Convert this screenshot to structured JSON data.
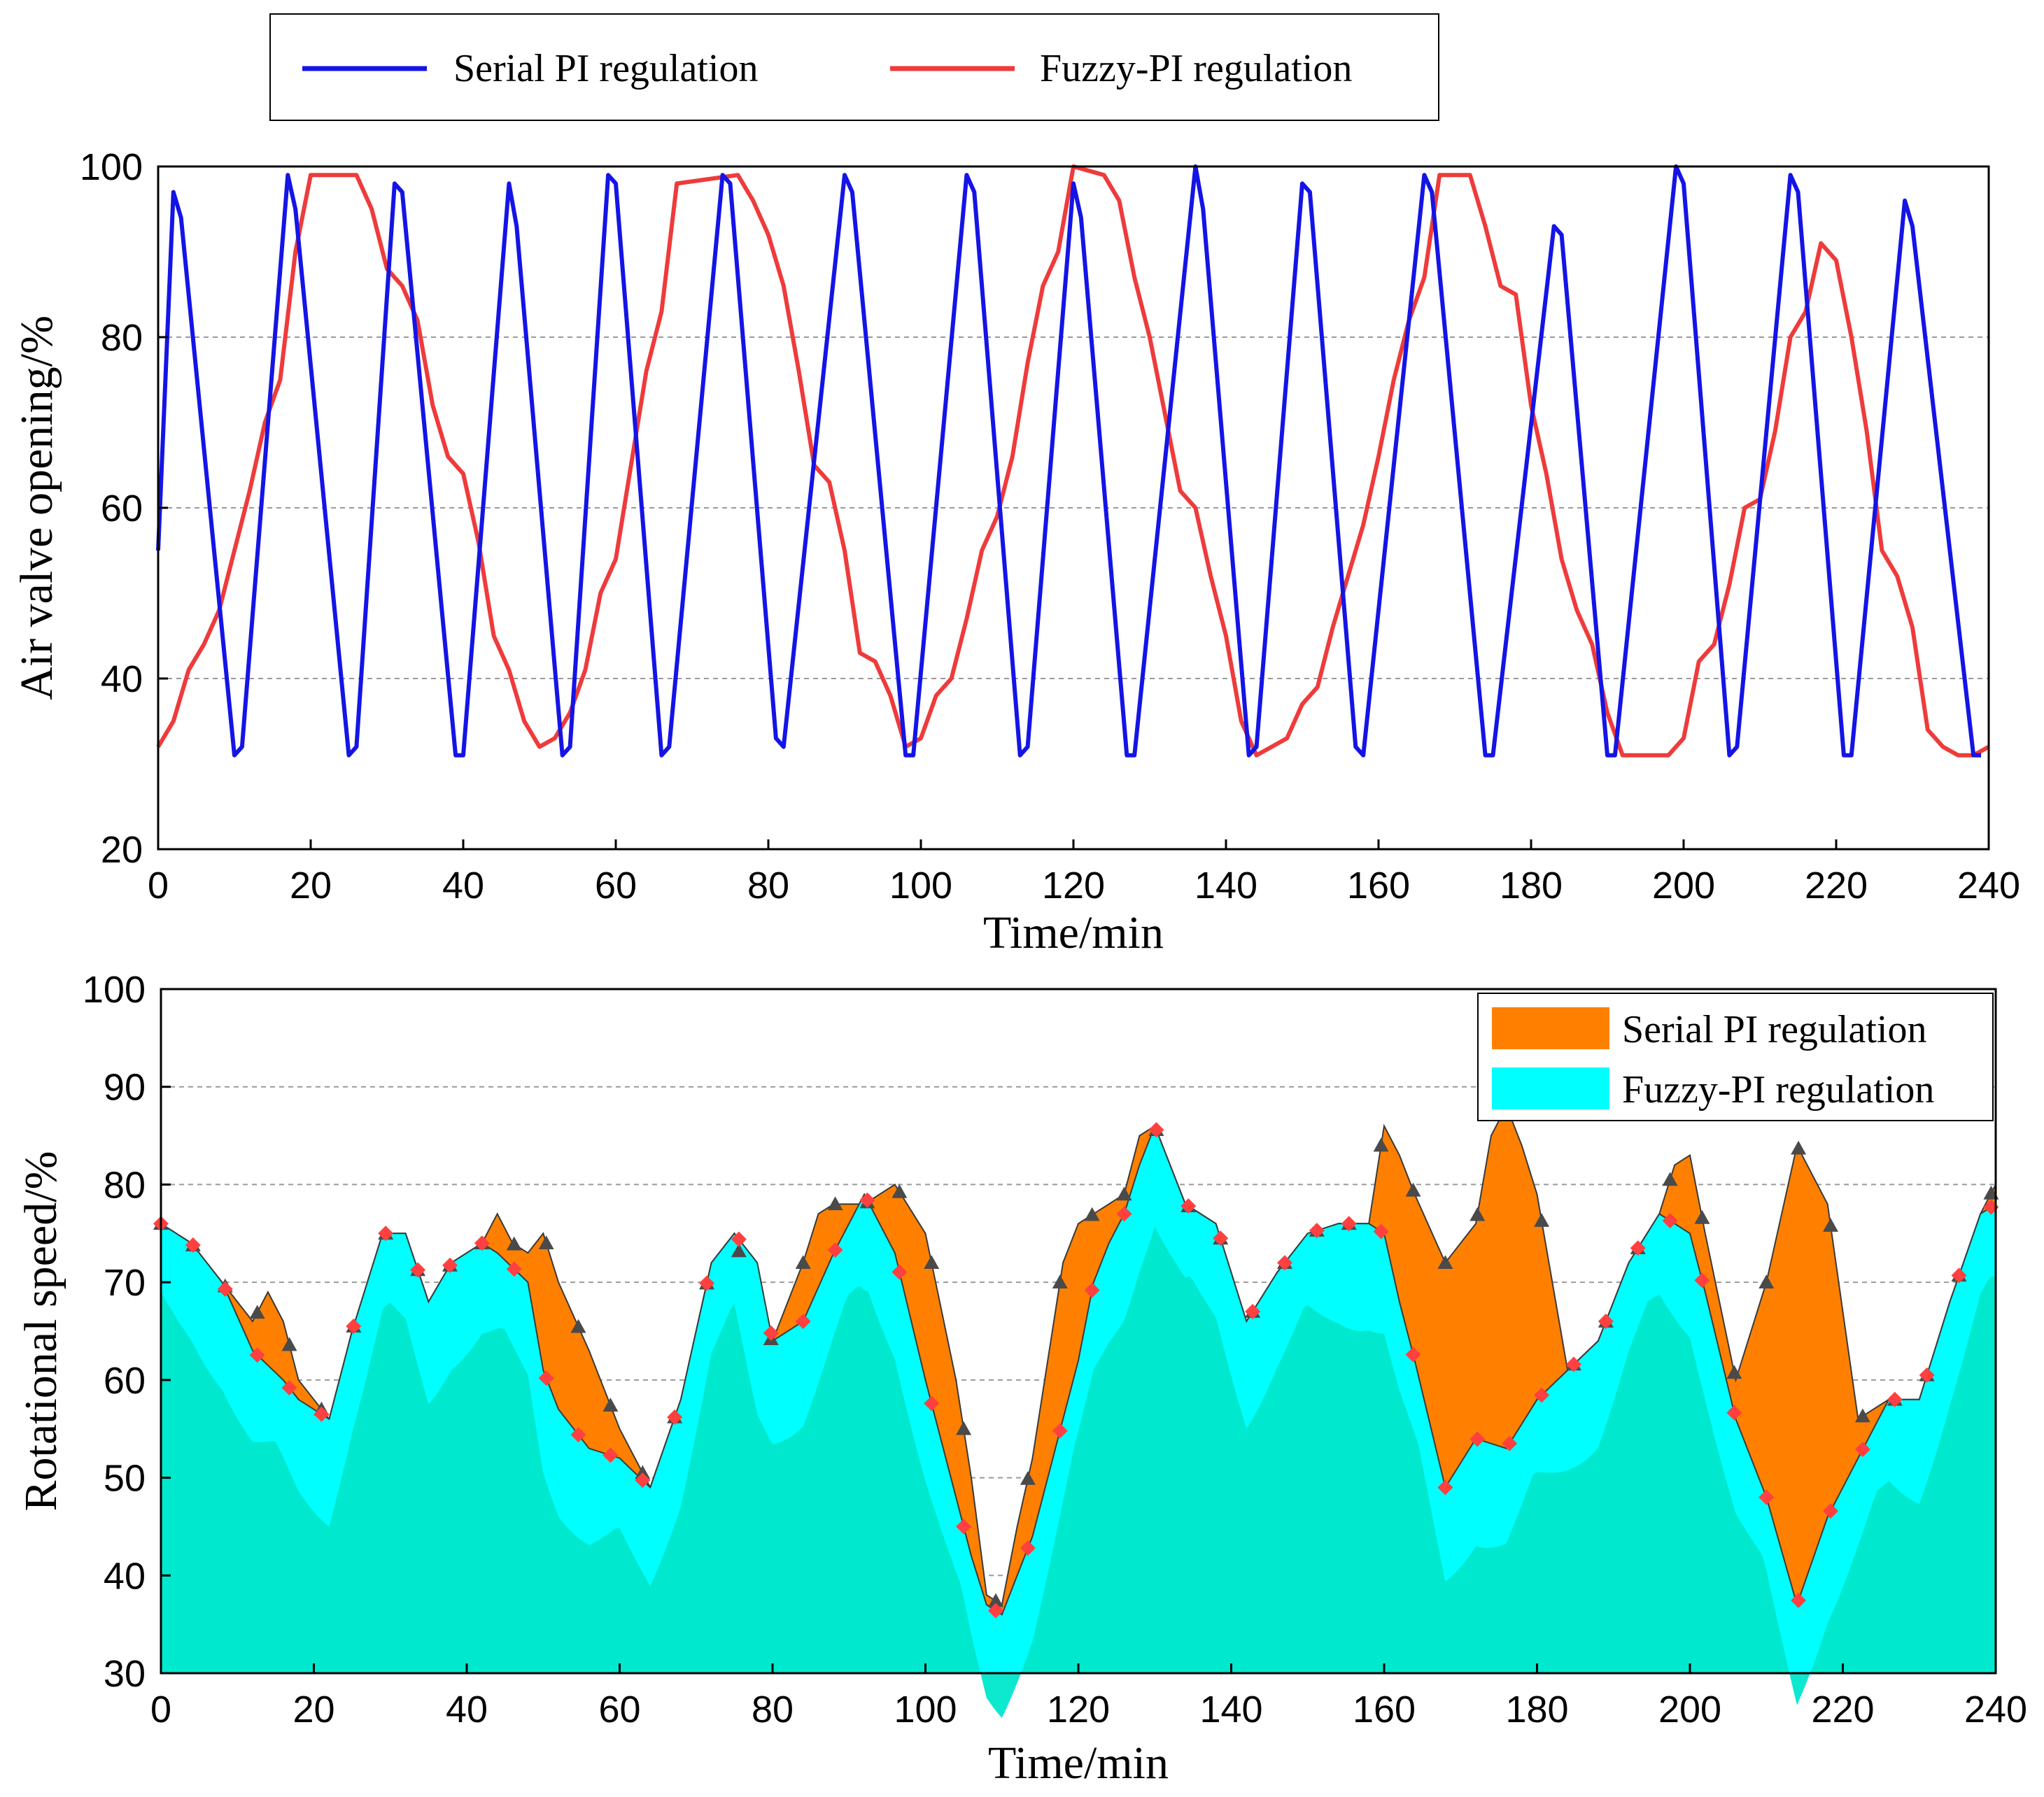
{
  "colors": {
    "serial_line": "#1414e6",
    "fuzzy_line": "#ee3b3b",
    "serial_area": "#ff8000",
    "fuzzy_area": "#00ffff",
    "overlap_area": "#00e8cc",
    "triangle_marker": "#4a4a4a",
    "diamond_marker": "#ff4040"
  },
  "chart_data": [
    {
      "type": "line",
      "title": "",
      "xlabel": "Time/min",
      "ylabel": "Air valve opening/%",
      "xlim": [
        0,
        240
      ],
      "ylim": [
        20,
        100
      ],
      "xticks": [
        "0",
        "20",
        "40",
        "60",
        "80",
        "100",
        "120",
        "140",
        "160",
        "180",
        "200",
        "220",
        "240"
      ],
      "yticks": [
        "20",
        "40",
        "60",
        "80",
        "100"
      ],
      "grid": "horizontal dashed",
      "legend": {
        "position": "top",
        "entries": [
          "Serial PI regulation",
          "Fuzzy-PI regulation"
        ]
      },
      "series": [
        {
          "name": "Serial PI regulation",
          "x": [
            0,
            2,
            3,
            10,
            11,
            17,
            18,
            25,
            26,
            31,
            32,
            39,
            40,
            46,
            47,
            53,
            54,
            59,
            60,
            66,
            67,
            74,
            75,
            81,
            82,
            90,
            91,
            98,
            99,
            106,
            107,
            113,
            114,
            120,
            121,
            127,
            128,
            136,
            137,
            143,
            144,
            150,
            151,
            157,
            158,
            166,
            167,
            174,
            175,
            183,
            184,
            190,
            191,
            199,
            200,
            206,
            207,
            214,
            215,
            221,
            222,
            229,
            230,
            238,
            239
          ],
          "values": [
            55,
            97,
            94,
            31,
            32,
            99,
            95,
            31,
            32,
            98,
            97,
            31,
            31,
            98,
            93,
            31,
            32,
            99,
            98,
            31,
            32,
            99,
            98,
            33,
            32,
            99,
            97,
            31,
            31,
            99,
            97,
            31,
            32,
            98,
            94,
            31,
            31,
            100,
            95,
            31,
            32,
            98,
            97,
            32,
            31,
            99,
            97,
            31,
            31,
            93,
            92,
            31,
            31,
            100,
            98,
            31,
            32,
            99,
            97,
            31,
            31,
            96,
            93,
            31,
            31
          ]
        },
        {
          "name": "Fuzzy-PI regulation",
          "x": [
            0,
            2,
            4,
            6,
            8,
            10,
            12,
            14,
            16,
            18,
            20,
            26,
            28,
            30,
            32,
            34,
            36,
            38,
            40,
            42,
            44,
            46,
            48,
            50,
            52,
            54,
            56,
            58,
            60,
            62,
            64,
            66,
            68,
            76,
            78,
            80,
            82,
            84,
            86,
            88,
            90,
            92,
            94,
            96,
            98,
            100,
            102,
            104,
            106,
            108,
            110,
            112,
            114,
            116,
            118,
            120,
            124,
            126,
            128,
            130,
            132,
            134,
            136,
            138,
            140,
            142,
            144,
            146,
            148,
            150,
            152,
            154,
            156,
            158,
            160,
            162,
            164,
            166,
            168,
            172,
            174,
            176,
            178,
            180,
            182,
            184,
            186,
            188,
            190,
            192,
            194,
            196,
            198,
            200,
            202,
            204,
            206,
            208,
            210,
            212,
            214,
            216,
            218,
            220,
            222,
            224,
            226,
            228,
            230,
            232,
            234,
            236,
            238,
            240
          ],
          "values": [
            32,
            35,
            41,
            44,
            48,
            55,
            62,
            70,
            75,
            90,
            99,
            99,
            95,
            88,
            86,
            82,
            72,
            66,
            64,
            56,
            45,
            41,
            35,
            32,
            33,
            36,
            41,
            50,
            54,
            65,
            76,
            83,
            98,
            99,
            96,
            92,
            86,
            76,
            65,
            63,
            55,
            43,
            42,
            38,
            32,
            33,
            38,
            40,
            47,
            55,
            59,
            66,
            77,
            86,
            90,
            100,
            99,
            96,
            87,
            80,
            71,
            62,
            60,
            52,
            45,
            35,
            31,
            32,
            33,
            37,
            39,
            46,
            52,
            58,
            66,
            75,
            82,
            87,
            99,
            99,
            93,
            86,
            85,
            72,
            64,
            54,
            48,
            44,
            36,
            31,
            31,
            31,
            31,
            33,
            42,
            44,
            51,
            60,
            61,
            69,
            80,
            83,
            91,
            89,
            80,
            69,
            55,
            52,
            46,
            34,
            32,
            31,
            31,
            32
          ]
        }
      ]
    },
    {
      "type": "area",
      "title": "",
      "xlabel": "Time/min",
      "ylabel": "Rotational speed/%",
      "xlim": [
        0,
        240
      ],
      "ylim": [
        30,
        100
      ],
      "xticks": [
        "0",
        "20",
        "40",
        "60",
        "80",
        "100",
        "120",
        "140",
        "160",
        "180",
        "200",
        "220",
        "240"
      ],
      "yticks": [
        "30",
        "40",
        "50",
        "60",
        "70",
        "80",
        "90",
        "100"
      ],
      "grid": "horizontal dashed",
      "legend": {
        "position": "top-right",
        "entries": [
          "Serial PI regulation",
          "Fuzzy-PI regulation"
        ]
      },
      "series": [
        {
          "name": "Serial PI regulation",
          "marker": "triangle",
          "x": [
            0,
            4,
            8,
            12,
            14,
            16,
            18,
            22,
            25,
            29,
            32,
            35,
            38,
            42,
            44,
            46,
            48,
            50,
            52,
            56,
            60,
            64,
            68,
            72,
            75,
            78,
            80,
            84,
            86,
            88,
            92,
            96,
            100,
            104,
            106,
            108,
            110,
            112,
            114,
            116,
            118,
            120,
            122,
            124,
            126,
            128,
            130,
            134,
            138,
            142,
            146,
            150,
            154,
            158,
            160,
            162,
            164,
            168,
            172,
            174,
            176,
            178,
            180,
            184,
            188,
            192,
            196,
            198,
            200,
            202,
            206,
            210,
            214,
            218,
            222,
            226,
            230,
            234,
            238,
            240
          ],
          "values": [
            76,
            74,
            70,
            66,
            69,
            66,
            60,
            56,
            65,
            75,
            75,
            68,
            72,
            74,
            77,
            74,
            73,
            75,
            70,
            63,
            55,
            49,
            58,
            72,
            75,
            66,
            64,
            72,
            77,
            78,
            78,
            80,
            75,
            60,
            50,
            38,
            37,
            45,
            52,
            62,
            72,
            76,
            77,
            78,
            79,
            85,
            86,
            78,
            76,
            66,
            71,
            75,
            76,
            76,
            86,
            83,
            79,
            72,
            76,
            85,
            88,
            84,
            79,
            61,
            64,
            72,
            77,
            82,
            83,
            75,
            60,
            70,
            84,
            78,
            56,
            58,
            58,
            68,
            77,
            80
          ]
        },
        {
          "name": "Fuzzy-PI regulation",
          "marker": "diamond",
          "x": [
            0,
            4,
            8,
            12,
            16,
            18,
            22,
            25,
            29,
            32,
            35,
            38,
            42,
            44,
            48,
            50,
            52,
            56,
            60,
            64,
            68,
            72,
            75,
            78,
            80,
            84,
            88,
            92,
            96,
            100,
            104,
            106,
            108,
            110,
            112,
            114,
            116,
            118,
            120,
            122,
            124,
            126,
            128,
            130,
            134,
            138,
            142,
            146,
            150,
            154,
            158,
            160,
            162,
            164,
            168,
            172,
            176,
            180,
            184,
            188,
            192,
            196,
            198,
            200,
            202,
            206,
            210,
            214,
            218,
            222,
            226,
            230,
            234,
            238,
            240
          ],
          "values": [
            76,
            74,
            70,
            63,
            60,
            58,
            56,
            65,
            75,
            75,
            68,
            72,
            74,
            73,
            70,
            61,
            57,
            53,
            52,
            49,
            58,
            72,
            75,
            72,
            64,
            66,
            73,
            79,
            73,
            60,
            48,
            42,
            37,
            36,
            40,
            44,
            50,
            56,
            62,
            70,
            74,
            77,
            82,
            86,
            78,
            76,
            66,
            71,
            75,
            76,
            76,
            75,
            68,
            62,
            49,
            54,
            53,
            58,
            61,
            64,
            72,
            77,
            76,
            75,
            69,
            56,
            48,
            37,
            46,
            52,
            58,
            58,
            68,
            77,
            78
          ]
        }
      ]
    }
  ]
}
